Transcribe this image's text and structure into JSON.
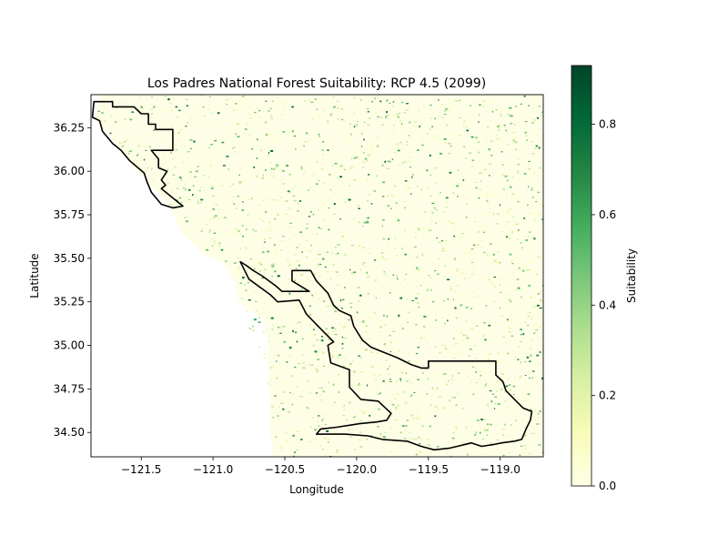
{
  "chart_data": {
    "type": "heatmap",
    "title": "Los Padres National Forest Suitability: RCP 4.5 (2099)",
    "xlabel": "Longitude",
    "ylabel": "Latitude",
    "xlim": [
      -121.85,
      -118.7
    ],
    "ylim": [
      34.36,
      36.44
    ],
    "x_ticks": [
      -121.5,
      -121.0,
      -120.5,
      -120.0,
      -119.5,
      -119.0
    ],
    "x_tick_labels": [
      "−121.5",
      "−121.0",
      "−120.5",
      "−120.0",
      "−119.5",
      "−119.0"
    ],
    "y_ticks": [
      34.5,
      34.75,
      35.0,
      35.25,
      35.5,
      35.75,
      36.0,
      36.25
    ],
    "y_tick_labels": [
      "34.50",
      "34.75",
      "35.00",
      "35.25",
      "35.50",
      "35.75",
      "36.00",
      "36.25"
    ],
    "colorbar": {
      "label": "Suitability",
      "colormap": "YlGn",
      "range": [
        0,
        0.93
      ],
      "ticks": [
        0.0,
        0.2,
        0.4,
        0.6,
        0.8
      ],
      "tick_labels": [
        "0.0",
        "0.2",
        "0.4",
        "0.6",
        "0.8"
      ]
    },
    "colormap_stops": [
      "#ffffe5",
      "#f7fcb9",
      "#d9f0a3",
      "#addd8e",
      "#78c679",
      "#41ab5d",
      "#238443",
      "#006837",
      "#004529"
    ],
    "grid": false,
    "boundary_color": "#000000",
    "forest_boundary": {
      "north_unit": [
        [
          -121.83,
          36.4
        ],
        [
          -121.7,
          36.4
        ],
        [
          -121.7,
          36.37
        ],
        [
          -121.55,
          36.37
        ],
        [
          -121.5,
          36.33
        ],
        [
          -121.45,
          36.33
        ],
        [
          -121.45,
          36.27
        ],
        [
          -121.4,
          36.27
        ],
        [
          -121.4,
          36.24
        ],
        [
          -121.28,
          36.24
        ],
        [
          -121.28,
          36.12
        ],
        [
          -121.43,
          36.12
        ],
        [
          -121.38,
          36.07
        ],
        [
          -121.38,
          36.02
        ],
        [
          -121.32,
          36.0
        ],
        [
          -121.36,
          35.95
        ],
        [
          -121.33,
          35.92
        ],
        [
          -121.36,
          35.9
        ],
        [
          -121.3,
          35.86
        ],
        [
          -121.21,
          35.8
        ],
        [
          -121.28,
          35.79
        ],
        [
          -121.36,
          35.81
        ],
        [
          -121.43,
          35.88
        ],
        [
          -121.46,
          35.94
        ],
        [
          -121.48,
          35.99
        ],
        [
          -121.58,
          36.06
        ],
        [
          -121.64,
          36.12
        ],
        [
          -121.7,
          36.16
        ],
        [
          -121.77,
          36.23
        ],
        [
          -121.79,
          36.29
        ],
        [
          -121.84,
          36.31
        ],
        [
          -121.83,
          36.4
        ]
      ],
      "south_unit": [
        [
          -120.81,
          35.48
        ],
        [
          -120.77,
          35.46
        ],
        [
          -120.72,
          35.43
        ],
        [
          -120.66,
          35.4
        ],
        [
          -120.56,
          35.34
        ],
        [
          -120.52,
          35.31
        ],
        [
          -120.46,
          35.31
        ],
        [
          -120.33,
          35.31
        ],
        [
          -120.45,
          35.37
        ],
        [
          -120.45,
          35.43
        ],
        [
          -120.32,
          35.43
        ],
        [
          -120.28,
          35.37
        ],
        [
          -120.2,
          35.3
        ],
        [
          -120.16,
          35.23
        ],
        [
          -120.12,
          35.2
        ],
        [
          -120.04,
          35.17
        ],
        [
          -120.02,
          35.11
        ],
        [
          -119.96,
          35.03
        ],
        [
          -119.9,
          34.99
        ],
        [
          -119.81,
          34.96
        ],
        [
          -119.72,
          34.93
        ],
        [
          -119.62,
          34.89
        ],
        [
          -119.55,
          34.87
        ],
        [
          -119.5,
          34.87
        ],
        [
          -119.5,
          34.91
        ],
        [
          -119.3,
          34.91
        ],
        [
          -119.03,
          34.91
        ],
        [
          -119.03,
          34.83
        ],
        [
          -118.98,
          34.79
        ],
        [
          -118.96,
          34.74
        ],
        [
          -118.9,
          34.69
        ],
        [
          -118.84,
          34.64
        ],
        [
          -118.78,
          34.62
        ],
        [
          -118.79,
          34.57
        ],
        [
          -118.82,
          34.52
        ],
        [
          -118.85,
          34.46
        ],
        [
          -118.9,
          34.45
        ],
        [
          -118.99,
          34.44
        ],
        [
          -119.05,
          34.43
        ],
        [
          -119.13,
          34.42
        ],
        [
          -119.2,
          34.44
        ],
        [
          -119.35,
          34.41
        ],
        [
          -119.46,
          34.4
        ],
        [
          -119.55,
          34.42
        ],
        [
          -119.65,
          34.45
        ],
        [
          -119.82,
          34.46
        ],
        [
          -119.92,
          34.48
        ],
        [
          -120.08,
          34.49
        ],
        [
          -120.28,
          34.49
        ],
        [
          -120.25,
          34.52
        ],
        [
          -120.14,
          34.53
        ],
        [
          -119.98,
          34.55
        ],
        [
          -119.86,
          34.56
        ],
        [
          -119.79,
          34.57
        ],
        [
          -119.76,
          34.61
        ],
        [
          -119.85,
          34.68
        ],
        [
          -119.97,
          34.69
        ],
        [
          -120.05,
          34.76
        ],
        [
          -120.05,
          34.86
        ],
        [
          -120.18,
          34.9
        ],
        [
          -120.2,
          35.0
        ],
        [
          -120.16,
          35.02
        ],
        [
          -120.28,
          35.12
        ],
        [
          -120.35,
          35.18
        ],
        [
          -120.4,
          35.26
        ],
        [
          -120.55,
          35.25
        ],
        [
          -120.6,
          35.29
        ],
        [
          -120.75,
          35.38
        ],
        [
          -120.81,
          35.48
        ]
      ]
    }
  }
}
